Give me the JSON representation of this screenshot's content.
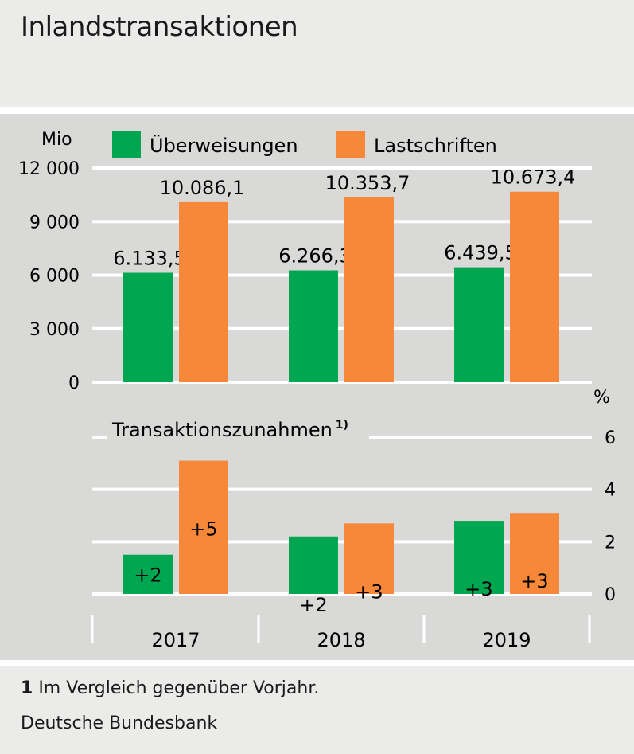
{
  "title": "Inlandstransaktionen",
  "footnote": {
    "number": "1",
    "text": "Im Vergleich gegenüber Vorjahr."
  },
  "source": "Deutsche Bundesbank",
  "colors": {
    "green": "#00a650",
    "orange": "#f7883a",
    "panel": "#d9d9d8",
    "grid": "#ffffff"
  },
  "chart_data": [
    {
      "type": "bar",
      "ylabel": "Mio",
      "ylim": [
        0,
        12000
      ],
      "yticks": [
        "0",
        "3 000",
        "6 000",
        "9 000",
        "12 000"
      ],
      "ytick_values": [
        0,
        3000,
        6000,
        9000,
        12000
      ],
      "legend": [
        "Überweisungen",
        "Lastschriften"
      ],
      "legend_position": "top",
      "categories": [
        "2017",
        "2018",
        "2019"
      ],
      "series": [
        {
          "name": "Überweisungen",
          "values": [
            6133.5,
            6266.3,
            6439.5
          ],
          "labels": [
            "6.133,5",
            "6.266,3",
            "6.439,5"
          ]
        },
        {
          "name": "Lastschriften",
          "values": [
            10086.1,
            10353.7,
            10673.4
          ],
          "labels": [
            "10.086,1",
            "10.353,7",
            "10.673,4"
          ]
        }
      ],
      "grid": true
    },
    {
      "type": "bar",
      "subtitle": "Transaktionszunahmen",
      "subtitle_note": "1)",
      "ylabel": "%",
      "ylim": [
        0,
        6
      ],
      "yticks": [
        "0",
        "2",
        "4",
        "6"
      ],
      "ytick_values": [
        0,
        2,
        4,
        6
      ],
      "categories": [
        "2017",
        "2018",
        "2019"
      ],
      "series": [
        {
          "name": "Überweisungen",
          "values": [
            1.5,
            2.2,
            2.8
          ],
          "labels": [
            "+2",
            "+2",
            "+3"
          ]
        },
        {
          "name": "Lastschriften",
          "values": [
            5.1,
            2.7,
            3.1
          ],
          "labels": [
            "+5",
            "+3",
            "+3"
          ]
        }
      ],
      "grid": true
    }
  ]
}
